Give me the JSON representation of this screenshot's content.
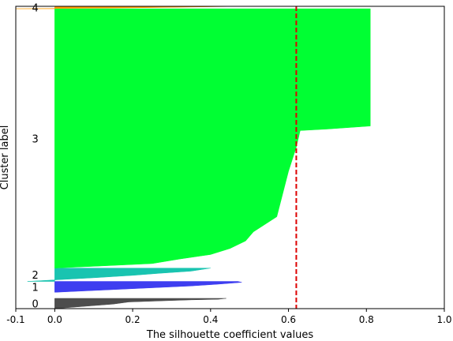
{
  "chart_data": {
    "type": "area",
    "title": "",
    "xlabel": "The silhouette coefficient values",
    "ylabel": "Cluster label",
    "xlim": [
      -0.1,
      1.0
    ],
    "ylim": [
      0,
      100
    ],
    "x_ticks": [
      "-0.1",
      "0.0",
      "0.2",
      "0.4",
      "0.6",
      "0.8",
      "1.0"
    ],
    "x_tick_values": [
      -0.1,
      0.0,
      0.2,
      0.4,
      0.6,
      0.8,
      1.0
    ],
    "grid": false,
    "legend": "none",
    "average_silhouette": 0.62,
    "average_line_color": "#dd0000",
    "clusters": [
      {
        "label": "0",
        "color": "#4d4d4d",
        "y_lower": 0.0,
        "y_upper": 3.4,
        "profile": [
          [
            0.0,
            0.0
          ],
          [
            0.02,
            0.2
          ],
          [
            0.05,
            0.5
          ],
          [
            0.1,
            1.0
          ],
          [
            0.15,
            1.5
          ],
          [
            0.19,
            2.2
          ],
          [
            0.28,
            2.6
          ],
          [
            0.35,
            2.9
          ],
          [
            0.42,
            3.1
          ],
          [
            0.44,
            3.4
          ]
        ]
      },
      {
        "label": "1",
        "color": "#3e3ef0",
        "y_lower": 5.4,
        "y_upper": 9.0,
        "profile": [
          [
            0.0,
            0.0
          ],
          [
            0.05,
            0.3
          ],
          [
            0.1,
            0.6
          ],
          [
            0.15,
            0.9
          ],
          [
            0.25,
            1.5
          ],
          [
            0.35,
            2.1
          ],
          [
            0.42,
            2.7
          ],
          [
            0.48,
            3.3
          ],
          [
            0.47,
            3.6
          ]
        ]
      },
      {
        "label": "2",
        "color": "#19c4b0",
        "y_lower": 9.0,
        "y_upper": 13.4,
        "profile": [
          [
            -0.07,
            0.0
          ],
          [
            0.0,
            0.5
          ],
          [
            0.1,
            1.2
          ],
          [
            0.2,
            2.0
          ],
          [
            0.27,
            2.7
          ],
          [
            0.35,
            3.4
          ],
          [
            0.4,
            4.4
          ]
        ]
      },
      {
        "label": "3",
        "color": "#00ff33",
        "y_lower": 13.4,
        "y_upper": 99.2,
        "profile": [
          [
            0.0,
            0.0
          ],
          [
            0.25,
            1.5
          ],
          [
            0.32,
            3.0
          ],
          [
            0.4,
            4.5
          ],
          [
            0.45,
            6.5
          ],
          [
            0.49,
            9.0
          ],
          [
            0.51,
            12.0
          ],
          [
            0.57,
            17.0
          ],
          [
            0.58,
            22.0
          ],
          [
            0.59,
            27.0
          ],
          [
            0.6,
            32.0
          ],
          [
            0.61,
            36.0
          ],
          [
            0.62,
            40.0
          ],
          [
            0.63,
            45.5
          ],
          [
            0.7,
            46.0
          ],
          [
            0.81,
            47.0
          ],
          [
            0.81,
            85.8
          ]
        ]
      },
      {
        "label": "4",
        "color": "#ff9a00",
        "y_lower": 99.2,
        "y_upper": 100.0,
        "profile": [
          [
            -0.1,
            0.0
          ],
          [
            0.2,
            0.3
          ],
          [
            0.48,
            0.8
          ]
        ]
      }
    ]
  }
}
